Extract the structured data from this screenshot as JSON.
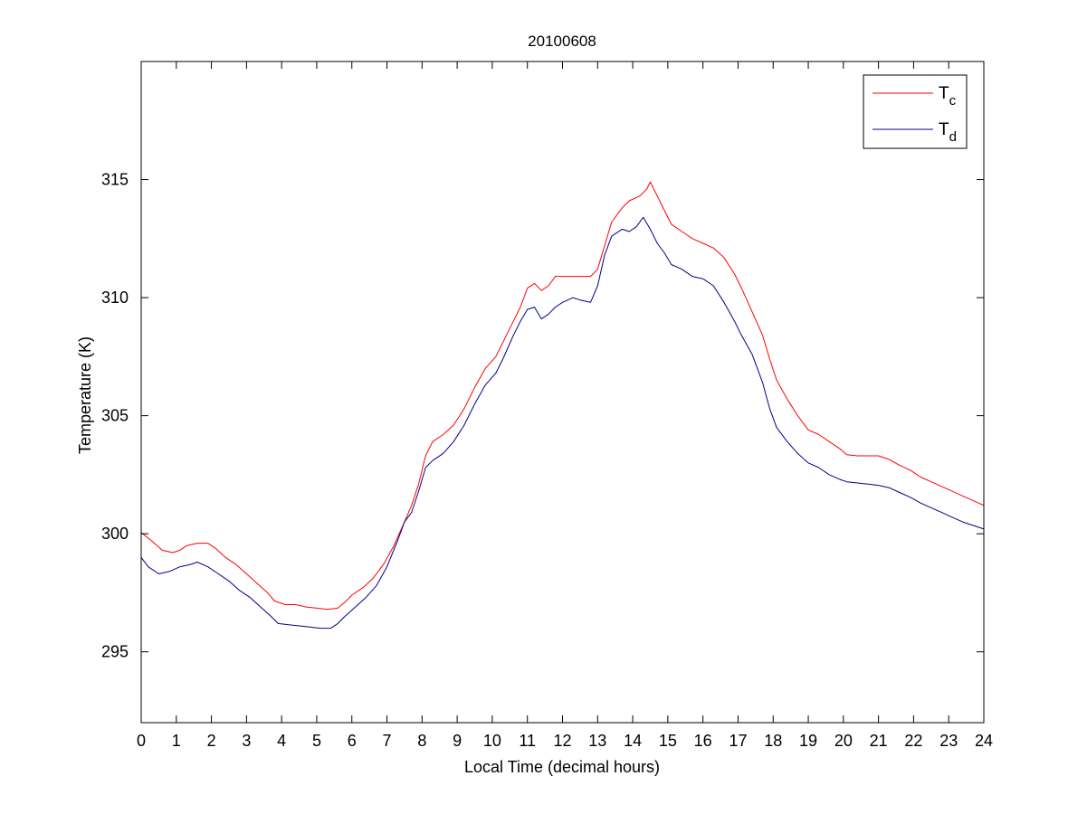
{
  "chart_data": {
    "type": "line",
    "title": "20100608",
    "xlabel": "Local Time (decimal hours)",
    "ylabel": "Temperature (K)",
    "xlim": [
      0,
      24
    ],
    "ylim": [
      292,
      320
    ],
    "xticks": [
      0,
      1,
      2,
      3,
      4,
      5,
      6,
      7,
      8,
      9,
      10,
      11,
      12,
      13,
      14,
      15,
      16,
      17,
      18,
      19,
      20,
      21,
      22,
      23,
      24
    ],
    "yticks": [
      295,
      300,
      305,
      310,
      315
    ],
    "grid": false,
    "legend_position": "top-right",
    "series": [
      {
        "name": "T",
        "subscript": "c",
        "color": "#ff0000",
        "points": [
          [
            0,
            300.05
          ],
          [
            0.3,
            299.7
          ],
          [
            0.6,
            299.3
          ],
          [
            0.9,
            299.2
          ],
          [
            1.1,
            299.3
          ],
          [
            1.3,
            299.5
          ],
          [
            1.6,
            299.6
          ],
          [
            1.9,
            299.6
          ],
          [
            2.1,
            299.4
          ],
          [
            2.4,
            299.0
          ],
          [
            2.7,
            298.7
          ],
          [
            3.0,
            298.3
          ],
          [
            3.3,
            297.9
          ],
          [
            3.6,
            297.5
          ],
          [
            3.8,
            297.15
          ],
          [
            4.1,
            297.0
          ],
          [
            4.4,
            297.0
          ],
          [
            4.7,
            296.9
          ],
          [
            5.0,
            296.85
          ],
          [
            5.3,
            296.8
          ],
          [
            5.6,
            296.85
          ],
          [
            5.8,
            297.1
          ],
          [
            6.0,
            297.4
          ],
          [
            6.3,
            297.7
          ],
          [
            6.6,
            298.1
          ],
          [
            6.9,
            298.7
          ],
          [
            7.2,
            299.5
          ],
          [
            7.5,
            300.5
          ],
          [
            7.7,
            301.2
          ],
          [
            7.9,
            302.1
          ],
          [
            8.1,
            303.3
          ],
          [
            8.3,
            303.9
          ],
          [
            8.6,
            304.2
          ],
          [
            8.9,
            304.6
          ],
          [
            9.2,
            305.3
          ],
          [
            9.5,
            306.2
          ],
          [
            9.8,
            307.0
          ],
          [
            10.1,
            307.5
          ],
          [
            10.3,
            308.1
          ],
          [
            10.6,
            309.0
          ],
          [
            10.8,
            309.6
          ],
          [
            11.0,
            310.4
          ],
          [
            11.2,
            310.6
          ],
          [
            11.4,
            310.3
          ],
          [
            11.6,
            310.5
          ],
          [
            11.8,
            310.9
          ],
          [
            12.0,
            310.9
          ],
          [
            12.3,
            310.9
          ],
          [
            12.5,
            310.9
          ],
          [
            12.8,
            310.9
          ],
          [
            13.0,
            311.2
          ],
          [
            13.2,
            312.2
          ],
          [
            13.4,
            313.2
          ],
          [
            13.7,
            313.8
          ],
          [
            13.9,
            314.1
          ],
          [
            14.2,
            314.3
          ],
          [
            14.4,
            314.6
          ],
          [
            14.5,
            314.9
          ],
          [
            14.7,
            314.3
          ],
          [
            14.9,
            313.7
          ],
          [
            15.1,
            313.1
          ],
          [
            15.4,
            312.8
          ],
          [
            15.7,
            312.5
          ],
          [
            16.0,
            312.3
          ],
          [
            16.3,
            312.1
          ],
          [
            16.6,
            311.7
          ],
          [
            16.9,
            311.0
          ],
          [
            17.1,
            310.4
          ],
          [
            17.4,
            309.4
          ],
          [
            17.7,
            308.4
          ],
          [
            17.9,
            307.4
          ],
          [
            18.1,
            306.5
          ],
          [
            18.4,
            305.7
          ],
          [
            18.7,
            305.0
          ],
          [
            19.0,
            304.4
          ],
          [
            19.3,
            304.2
          ],
          [
            19.6,
            303.9
          ],
          [
            19.9,
            303.6
          ],
          [
            20.1,
            303.35
          ],
          [
            20.4,
            303.3
          ],
          [
            20.7,
            303.3
          ],
          [
            21.0,
            303.3
          ],
          [
            21.3,
            303.15
          ],
          [
            21.6,
            302.9
          ],
          [
            21.9,
            302.7
          ],
          [
            22.2,
            302.4
          ],
          [
            22.5,
            302.2
          ],
          [
            22.8,
            302.0
          ],
          [
            23.1,
            301.8
          ],
          [
            23.4,
            301.6
          ],
          [
            23.7,
            301.4
          ],
          [
            24.0,
            301.2
          ]
        ]
      },
      {
        "name": "T",
        "subscript": "d",
        "color": "#00008b",
        "points": [
          [
            0,
            299.0
          ],
          [
            0.2,
            298.6
          ],
          [
            0.5,
            298.3
          ],
          [
            0.8,
            298.4
          ],
          [
            1.1,
            298.6
          ],
          [
            1.4,
            298.7
          ],
          [
            1.6,
            298.8
          ],
          [
            1.9,
            298.6
          ],
          [
            2.2,
            298.3
          ],
          [
            2.5,
            298.0
          ],
          [
            2.8,
            297.6
          ],
          [
            3.1,
            297.3
          ],
          [
            3.4,
            296.9
          ],
          [
            3.7,
            296.5
          ],
          [
            3.9,
            296.2
          ],
          [
            4.2,
            296.15
          ],
          [
            4.5,
            296.1
          ],
          [
            4.8,
            296.05
          ],
          [
            5.1,
            296.0
          ],
          [
            5.4,
            296.0
          ],
          [
            5.6,
            296.2
          ],
          [
            5.8,
            296.5
          ],
          [
            6.1,
            296.9
          ],
          [
            6.4,
            297.3
          ],
          [
            6.7,
            297.8
          ],
          [
            7.0,
            298.6
          ],
          [
            7.3,
            299.7
          ],
          [
            7.5,
            300.5
          ],
          [
            7.7,
            300.9
          ],
          [
            7.9,
            301.8
          ],
          [
            8.1,
            302.8
          ],
          [
            8.3,
            303.1
          ],
          [
            8.6,
            303.4
          ],
          [
            8.9,
            303.9
          ],
          [
            9.2,
            304.6
          ],
          [
            9.5,
            305.5
          ],
          [
            9.8,
            306.3
          ],
          [
            10.1,
            306.8
          ],
          [
            10.3,
            307.4
          ],
          [
            10.6,
            308.4
          ],
          [
            10.8,
            309.0
          ],
          [
            11.0,
            309.5
          ],
          [
            11.2,
            309.6
          ],
          [
            11.4,
            309.1
          ],
          [
            11.6,
            309.3
          ],
          [
            11.8,
            309.6
          ],
          [
            12.0,
            309.8
          ],
          [
            12.3,
            310.0
          ],
          [
            12.5,
            309.9
          ],
          [
            12.8,
            309.8
          ],
          [
            13.0,
            310.5
          ],
          [
            13.2,
            311.8
          ],
          [
            13.4,
            312.6
          ],
          [
            13.7,
            312.9
          ],
          [
            13.9,
            312.8
          ],
          [
            14.1,
            313.0
          ],
          [
            14.3,
            313.4
          ],
          [
            14.5,
            312.9
          ],
          [
            14.7,
            312.3
          ],
          [
            14.9,
            311.9
          ],
          [
            15.1,
            311.4
          ],
          [
            15.4,
            311.2
          ],
          [
            15.7,
            310.9
          ],
          [
            16.0,
            310.8
          ],
          [
            16.3,
            310.5
          ],
          [
            16.6,
            309.8
          ],
          [
            16.9,
            309.0
          ],
          [
            17.1,
            308.4
          ],
          [
            17.4,
            307.6
          ],
          [
            17.7,
            306.4
          ],
          [
            17.9,
            305.3
          ],
          [
            18.1,
            304.5
          ],
          [
            18.4,
            303.9
          ],
          [
            18.7,
            303.4
          ],
          [
            19.0,
            303.0
          ],
          [
            19.3,
            302.8
          ],
          [
            19.6,
            302.5
          ],
          [
            19.9,
            302.3
          ],
          [
            20.1,
            302.2
          ],
          [
            20.4,
            302.15
          ],
          [
            20.7,
            302.1
          ],
          [
            21.0,
            302.05
          ],
          [
            21.3,
            301.95
          ],
          [
            21.6,
            301.75
          ],
          [
            21.9,
            301.55
          ],
          [
            22.2,
            301.3
          ],
          [
            22.5,
            301.1
          ],
          [
            22.8,
            300.9
          ],
          [
            23.1,
            300.7
          ],
          [
            23.4,
            300.5
          ],
          [
            23.7,
            300.35
          ],
          [
            24.0,
            300.2
          ]
        ]
      }
    ]
  }
}
